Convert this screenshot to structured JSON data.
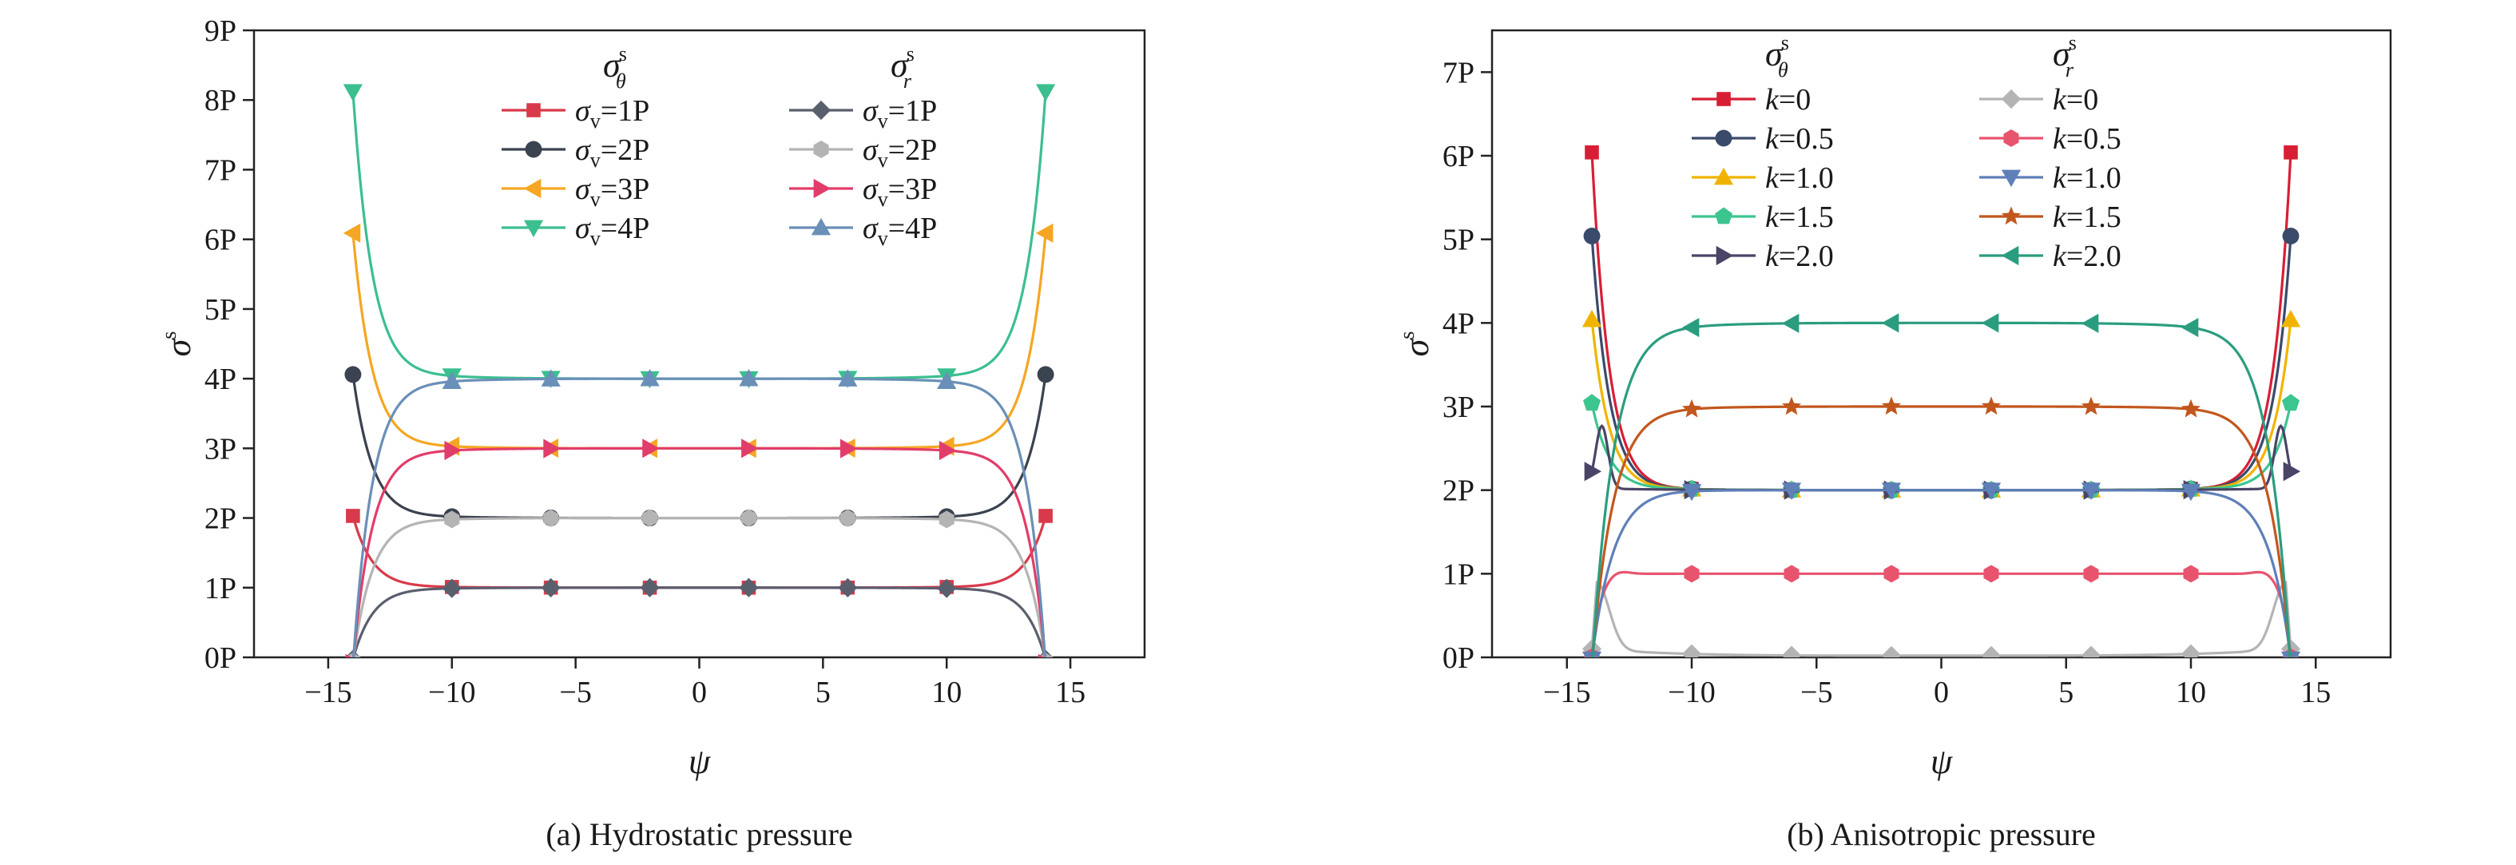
{
  "chart_data": [
    {
      "type": "line",
      "caption": "(a) Hydrostatic pressure",
      "xlabel": "ψ",
      "ylabel": "σ",
      "ylabel_sup": "s",
      "xlim": [
        -18,
        18
      ],
      "ylim": [
        0,
        9
      ],
      "xticks": [
        -15,
        -10,
        -5,
        0,
        5,
        10,
        15
      ],
      "xtick_labels": [
        "−15",
        "−10",
        "−5",
        "0",
        "5",
        "10",
        "15"
      ],
      "yticks": [
        0,
        1,
        2,
        3,
        4,
        5,
        6,
        7,
        8,
        9
      ],
      "ytick_labels": [
        "0P",
        "1P",
        "2P",
        "3P",
        "4P",
        "5P",
        "6P",
        "7P",
        "8P",
        "9P"
      ],
      "legend": {
        "placement": "top-center",
        "column_headers": [
          {
            "symbol": "σ",
            "sup": "s",
            "sub": "θ"
          },
          {
            "symbol": "σ",
            "sup": "s",
            "sub": "r"
          }
        ]
      },
      "series": [
        {
          "name_sym": "σ",
          "name_sub": "v",
          "name_rest": "=1P",
          "group": "theta",
          "color": "#d83a4b",
          "marker": "square",
          "sigma": 1,
          "dir": "theta"
        },
        {
          "name_sym": "σ",
          "name_sub": "v",
          "name_rest": "=2P",
          "group": "theta",
          "color": "#3b4250",
          "marker": "circle",
          "sigma": 2,
          "dir": "theta"
        },
        {
          "name_sym": "σ",
          "name_sub": "v",
          "name_rest": "=3P",
          "group": "theta",
          "color": "#f5a623",
          "marker": "tri-left",
          "sigma": 3,
          "dir": "theta"
        },
        {
          "name_sym": "σ",
          "name_sub": "v",
          "name_rest": "=4P",
          "group": "theta",
          "color": "#3bbf8f",
          "marker": "tri-down",
          "sigma": 4,
          "dir": "theta"
        },
        {
          "name_sym": "σ",
          "name_sub": "v",
          "name_rest": "=1P",
          "group": "r",
          "color": "#5a5f6e",
          "marker": "diamond",
          "sigma": 1,
          "dir": "r"
        },
        {
          "name_sym": "σ",
          "name_sub": "v",
          "name_rest": "=2P",
          "group": "r",
          "color": "#b4b4b4",
          "marker": "hexagon",
          "sigma": 2,
          "dir": "r"
        },
        {
          "name_sym": "σ",
          "name_sub": "v",
          "name_rest": "=3P",
          "group": "r",
          "color": "#e23d6a",
          "marker": "tri-right",
          "sigma": 3,
          "dir": "r"
        },
        {
          "name_sym": "σ",
          "name_sub": "v",
          "name_rest": "=4P",
          "group": "r",
          "color": "#6a8fb8",
          "marker": "tri-up",
          "sigma": 4,
          "dir": "r"
        }
      ]
    },
    {
      "type": "line",
      "caption": "(b) Anisotropic pressure",
      "xlabel": "ψ",
      "ylabel": "σ",
      "ylabel_sup": "s",
      "xlim": [
        -18,
        18
      ],
      "ylim": [
        0,
        7.5
      ],
      "xticks": [
        -15,
        -10,
        -5,
        0,
        5,
        10,
        15
      ],
      "xtick_labels": [
        "−15",
        "−10",
        "−5",
        "0",
        "5",
        "10",
        "15"
      ],
      "yticks": [
        0,
        1,
        2,
        3,
        4,
        5,
        6,
        7
      ],
      "ytick_labels": [
        "0P",
        "1P",
        "2P",
        "3P",
        "4P",
        "5P",
        "6P",
        "7P"
      ],
      "legend": {
        "placement": "top-center",
        "column_headers": [
          {
            "symbol": "σ",
            "sup": "s",
            "sub": "θ"
          },
          {
            "symbol": "σ",
            "sup": "s",
            "sub": "r"
          }
        ]
      },
      "series": [
        {
          "name_sym": "k",
          "name_sub": "",
          "name_rest": "=0",
          "group": "theta",
          "color": "#d81e35",
          "marker": "square",
          "k": 0,
          "dir": "theta"
        },
        {
          "name_sym": "k",
          "name_sub": "",
          "name_rest": "=0.5",
          "group": "theta",
          "color": "#3a4a6a",
          "marker": "circle",
          "k": 0.5,
          "dir": "theta"
        },
        {
          "name_sym": "k",
          "name_sub": "",
          "name_rest": "=1.0",
          "group": "theta",
          "color": "#f0b400",
          "marker": "tri-up",
          "k": 1.0,
          "dir": "theta"
        },
        {
          "name_sym": "k",
          "name_sub": "",
          "name_rest": "=1.5",
          "group": "theta",
          "color": "#3cc58f",
          "marker": "pentagon",
          "k": 1.5,
          "dir": "theta"
        },
        {
          "name_sym": "k",
          "name_sub": "",
          "name_rest": "=2.0",
          "group": "theta",
          "color": "#4a4466",
          "marker": "tri-right",
          "k": 2.0,
          "dir": "theta"
        },
        {
          "name_sym": "k",
          "name_sub": "",
          "name_rest": "=0",
          "group": "r",
          "color": "#b4b4b4",
          "marker": "diamond",
          "k": 0,
          "dir": "r"
        },
        {
          "name_sym": "k",
          "name_sub": "",
          "name_rest": "=0.5",
          "group": "r",
          "color": "#e8546e",
          "marker": "hexagon",
          "k": 0.5,
          "dir": "r"
        },
        {
          "name_sym": "k",
          "name_sub": "",
          "name_rest": "=1.0",
          "group": "r",
          "color": "#5f7fb8",
          "marker": "tri-down",
          "k": 1.0,
          "dir": "r"
        },
        {
          "name_sym": "k",
          "name_sub": "",
          "name_rest": "=1.5",
          "group": "r",
          "color": "#c2571e",
          "marker": "star",
          "k": 1.5,
          "dir": "r"
        },
        {
          "name_sym": "k",
          "name_sub": "",
          "name_rest": "=2.0",
          "group": "r",
          "color": "#2a9d7f",
          "marker": "tri-left",
          "k": 2.0,
          "dir": "r"
        }
      ]
    }
  ]
}
